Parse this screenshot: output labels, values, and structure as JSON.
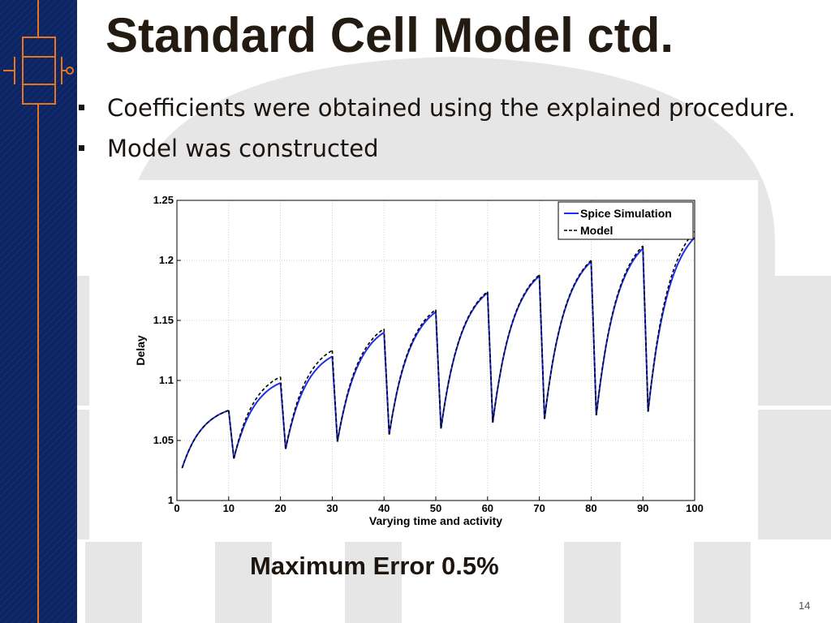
{
  "slide": {
    "title": "Standard Cell Model ctd.",
    "bullets": [
      "Coefficients were obtained using the explained procedure.",
      "Model was constructed"
    ],
    "highlight": "Maximum Error 0.5%",
    "page_number": "14",
    "colors": {
      "sidebar": "#0c2464",
      "sidebar_circuit": "#e8751a",
      "title_text": "#231a12"
    },
    "sidebar_icon": "transistor-symbol-icon"
  },
  "chart_data": {
    "type": "line",
    "title": "",
    "xlabel": "Varying time and activity",
    "ylabel": "Delay",
    "xlim": [
      0,
      100
    ],
    "ylim": [
      1,
      1.25
    ],
    "xticks": [
      0,
      10,
      20,
      30,
      40,
      50,
      60,
      70,
      80,
      90,
      100
    ],
    "yticks": [
      1,
      1.05,
      1.1,
      1.15,
      1.2,
      1.25
    ],
    "xtick_labels": [
      "0",
      "10",
      "20",
      "30",
      "40",
      "50",
      "60",
      "70",
      "80",
      "90",
      "100"
    ],
    "ytick_labels": [
      "1",
      "1.05",
      "1.1",
      "1.15",
      "1.2",
      "1.25"
    ],
    "grid": true,
    "legend_position": "top-right",
    "series": [
      {
        "name": "Spice Simulation",
        "color": "#1f2fe6",
        "style": "solid",
        "segments": [
          {
            "start": [
              1,
              1.027
            ],
            "end": [
              10,
              1.075
            ]
          },
          {
            "start": [
              11,
              1.035
            ],
            "end": [
              20,
              1.098
            ]
          },
          {
            "start": [
              21,
              1.043
            ],
            "end": [
              30,
              1.12
            ]
          },
          {
            "start": [
              31,
              1.049
            ],
            "end": [
              40,
              1.14
            ]
          },
          {
            "start": [
              41,
              1.055
            ],
            "end": [
              50,
              1.157
            ]
          },
          {
            "start": [
              51,
              1.06
            ],
            "end": [
              60,
              1.173
            ]
          },
          {
            "start": [
              61,
              1.065
            ],
            "end": [
              70,
              1.187
            ]
          },
          {
            "start": [
              71,
              1.068
            ],
            "end": [
              80,
              1.199
            ]
          },
          {
            "start": [
              81,
              1.071
            ],
            "end": [
              90,
              1.21
            ]
          },
          {
            "start": [
              91,
              1.074
            ],
            "end": [
              100,
              1.219
            ]
          }
        ]
      },
      {
        "name": "Model",
        "color": "#000000",
        "style": "dashed",
        "segments": [
          {
            "start": [
              1,
              1.027
            ],
            "end": [
              10,
              1.075
            ]
          },
          {
            "start": [
              11,
              1.035
            ],
            "end": [
              20,
              1.103
            ]
          },
          {
            "start": [
              21,
              1.043
            ],
            "end": [
              30,
              1.125
            ]
          },
          {
            "start": [
              31,
              1.049
            ],
            "end": [
              40,
              1.143
            ]
          },
          {
            "start": [
              41,
              1.055
            ],
            "end": [
              50,
              1.159
            ]
          },
          {
            "start": [
              51,
              1.06
            ],
            "end": [
              60,
              1.174
            ]
          },
          {
            "start": [
              61,
              1.065
            ],
            "end": [
              70,
              1.188
            ]
          },
          {
            "start": [
              71,
              1.068
            ],
            "end": [
              80,
              1.2
            ]
          },
          {
            "start": [
              81,
              1.071
            ],
            "end": [
              90,
              1.212
            ]
          },
          {
            "start": [
              91,
              1.074
            ],
            "end": [
              100,
              1.224
            ]
          }
        ]
      }
    ]
  }
}
